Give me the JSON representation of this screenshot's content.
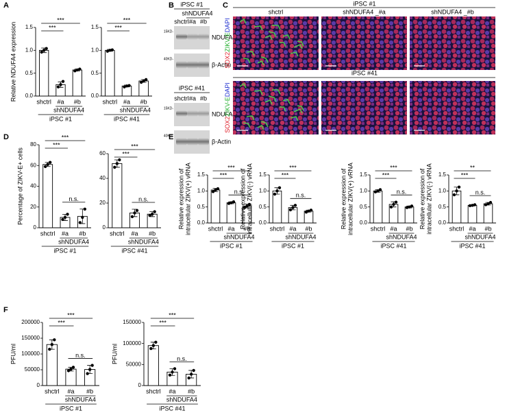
{
  "panels": [
    "A",
    "B",
    "C",
    "D",
    "E",
    "F"
  ],
  "blot": {
    "blocks": [
      {
        "cell_line": "iPSC #1",
        "group_label": "shNDUFA4",
        "lanes": [
          "shctrl",
          "#a",
          "#b"
        ],
        "bands": [
          {
            "marker": "15KD-",
            "name": "NDUFA4"
          },
          {
            "marker": "40KD-",
            "name": "β-Actin"
          }
        ]
      },
      {
        "cell_line": "iPSC #41",
        "lanes": [
          "shctrl",
          "#a",
          "#b"
        ],
        "bands": [
          {
            "marker": "15KD-",
            "name": "NDUFA4"
          },
          {
            "marker": "40KD-",
            "name": "β-Actin"
          }
        ]
      }
    ]
  },
  "images": {
    "stain": [
      "SOX2",
      "ZIKV-E",
      "DAPI"
    ],
    "rows": [
      {
        "cell_line": "iPSC #1",
        "columns": [
          "shctrl",
          "shNDUFA4 _#a",
          "shNDUFA4 _#b"
        ]
      },
      {
        "cell_line": "iPSC #41"
      }
    ]
  },
  "chart_data": [
    {
      "type": "bar",
      "ylabel": [
        "Relative NDUFA4 expression"
      ],
      "categories": [
        "shctrl",
        "#a",
        "#b"
      ],
      "group_label": "shNDUFA4",
      "cell_line": "iPSC #1",
      "values": [
        1.0,
        0.25,
        0.57
      ],
      "errors": [
        0.05,
        0.06,
        0.02
      ],
      "points": [
        [
          0.96,
          1.0,
          1.04
        ],
        [
          0.2,
          0.25,
          0.32
        ],
        [
          0.55,
          0.57,
          0.59
        ]
      ],
      "ylim": [
        0,
        1.5
      ],
      "yticks": [
        {
          "value": 0,
          "label": "0.0"
        },
        {
          "value": 0.5,
          "label": "0.5"
        },
        {
          "value": 1,
          "label": "1.0"
        },
        {
          "value": 1.5,
          "label": "1.5"
        }
      ],
      "brackets": [
        {
          "label": "***",
          "from": 0,
          "to": 2
        },
        {
          "label": "***",
          "from": 0,
          "to": 1
        }
      ],
      "color": "#ffffff",
      "edge_color": "#000000"
    },
    {
      "type": "bar",
      "categories": [
        "shctrl",
        "#a",
        "#b"
      ],
      "group_label": "shNDUFA4",
      "cell_line": "iPSC #41",
      "values": [
        1.0,
        0.22,
        0.33
      ],
      "errors": [
        0.02,
        0.02,
        0.03
      ],
      "points": [
        [
          0.98,
          1.0,
          1.01
        ],
        [
          0.2,
          0.22,
          0.23
        ],
        [
          0.3,
          0.33,
          0.36
        ]
      ],
      "ylim": [
        0,
        1.5
      ],
      "yticks": [
        {
          "value": 0,
          "label": "0.0"
        },
        {
          "value": 0.5,
          "label": "0.5"
        },
        {
          "value": 1,
          "label": "1.0"
        },
        {
          "value": 1.5,
          "label": "1.5"
        }
      ],
      "brackets": [
        {
          "label": "***",
          "from": 0,
          "to": 2
        },
        {
          "label": "***",
          "from": 0,
          "to": 1
        }
      ],
      "color": "#ffffff",
      "edge_color": "#000000"
    },
    {
      "type": "bar",
      "ylabel": [
        "Percentage of ZIKV-E+ cells"
      ],
      "categories": [
        "shctrl",
        "#a",
        "#b"
      ],
      "group_label": "shNDUFA4",
      "cell_line": "iPSC #1",
      "values": [
        61,
        10,
        11
      ],
      "errors": [
        2,
        3,
        7
      ],
      "points": [
        [
          59,
          61,
          63
        ],
        [
          8,
          10,
          13
        ],
        [
          5,
          10,
          18
        ]
      ],
      "ylim": [
        0,
        80
      ],
      "yticks": [
        0,
        20,
        40,
        60,
        80
      ],
      "brackets": [
        {
          "label": "***",
          "from": 0,
          "to": 2
        },
        {
          "label": "***",
          "from": 0,
          "to": 1
        },
        {
          "label": "n.s.",
          "from": 1,
          "to": 2
        }
      ],
      "color": "#ffffff",
      "edge_color": "#000000"
    },
    {
      "type": "bar",
      "categories": [
        "shctrl",
        "#a",
        "#b"
      ],
      "group_label": "shNDUFA4",
      "cell_line": "iPSC #41",
      "values": [
        52,
        12,
        11
      ],
      "errors": [
        3,
        3,
        2
      ],
      "points": [
        [
          49,
          52,
          55
        ],
        [
          9,
          12,
          14
        ],
        [
          10,
          11,
          13
        ]
      ],
      "ylim": [
        0,
        60
      ],
      "yticks": [
        0,
        20,
        40,
        60
      ],
      "brackets": [
        {
          "label": "***",
          "from": 0,
          "to": 2
        },
        {
          "label": "***",
          "from": 0,
          "to": 1
        },
        {
          "label": "n.s.",
          "from": 1,
          "to": 2
        }
      ],
      "color": "#ffffff",
      "edge_color": "#000000"
    },
    {
      "type": "bar",
      "ylabel": [
        "Relative expression of",
        "intracellular ZIKV(+) vRNA"
      ],
      "categories": [
        "shctrl",
        "#a",
        "#b"
      ],
      "group_label": "shNDUFA4",
      "cell_line": "iPSC #1",
      "values": [
        1.03,
        0.63,
        0.53
      ],
      "errors": [
        0.05,
        0.03,
        0.06
      ],
      "points": [
        [
          0.98,
          1.03,
          1.07
        ],
        [
          0.61,
          0.63,
          0.66
        ],
        [
          0.48,
          0.53,
          0.58
        ]
      ],
      "ylim": [
        0,
        1.5
      ],
      "yticks": [
        {
          "value": 0,
          "label": "0.0"
        },
        {
          "value": 0.5,
          "label": "0.5"
        },
        {
          "value": 1,
          "label": "1.0"
        },
        {
          "value": 1.5,
          "label": "1.5"
        }
      ],
      "brackets": [
        {
          "label": "***",
          "from": 0,
          "to": 2
        },
        {
          "label": "***",
          "from": 0,
          "to": 1
        },
        {
          "label": "n.s.",
          "from": 1,
          "to": 2
        }
      ],
      "color": "#ffffff",
      "edge_color": "#000000"
    },
    {
      "type": "bar",
      "ylabel": [
        "Relative expression of",
        "intracellular ZIKV(-) vRNA"
      ],
      "categories": [
        "shctrl",
        "#a",
        "#b"
      ],
      "group_label": "shNDUFA4",
      "cell_line": "iPSC #1",
      "values": [
        1.0,
        0.48,
        0.37
      ],
      "errors": [
        0.1,
        0.07,
        0.03
      ],
      "points": [
        [
          0.9,
          1.0,
          1.1
        ],
        [
          0.41,
          0.48,
          0.55
        ],
        [
          0.34,
          0.37,
          0.4
        ]
      ],
      "ylim": [
        0,
        1.5
      ],
      "yticks": [
        {
          "value": 0,
          "label": "0.0"
        },
        {
          "value": 0.5,
          "label": "0.5"
        },
        {
          "value": 1,
          "label": "1.0"
        },
        {
          "value": 1.5,
          "label": "1.5"
        }
      ],
      "brackets": [
        {
          "label": "***",
          "from": 0,
          "to": 2
        },
        {
          "label": "***",
          "from": 0,
          "to": 1
        },
        {
          "label": "n.s.",
          "from": 1,
          "to": 2
        }
      ],
      "color": "#ffffff",
      "edge_color": "#000000"
    },
    {
      "type": "bar",
      "ylabel": [
        "Relative expression of",
        "intracellular ZIKV(+) vRNA"
      ],
      "categories": [
        "shctrl",
        "#a",
        "#b"
      ],
      "group_label": "shNDUFA4",
      "cell_line": "iPSC #41",
      "values": [
        1.0,
        0.58,
        0.5
      ],
      "errors": [
        0.04,
        0.08,
        0.03
      ],
      "points": [
        [
          0.97,
          1.0,
          1.04
        ],
        [
          0.5,
          0.58,
          0.65
        ],
        [
          0.48,
          0.5,
          0.53
        ]
      ],
      "ylim": [
        0,
        1.5
      ],
      "yticks": [
        {
          "value": 0,
          "label": "0.0"
        },
        {
          "value": 0.5,
          "label": "0.5"
        },
        {
          "value": 1,
          "label": "1.0"
        },
        {
          "value": 1.5,
          "label": "1.5"
        }
      ],
      "brackets": [
        {
          "label": "***",
          "from": 0,
          "to": 2
        },
        {
          "label": "***",
          "from": 0,
          "to": 1
        },
        {
          "label": "n.s.",
          "from": 1,
          "to": 2
        }
      ],
      "color": "#ffffff",
      "edge_color": "#000000"
    },
    {
      "type": "bar",
      "ylabel": [
        "Relative expression of",
        "intracellular ZIKV(-) vRNA"
      ],
      "categories": [
        "shctrl",
        "#a",
        "#b"
      ],
      "group_label": "shNDUFA4",
      "cell_line": "iPSC #41",
      "values": [
        1.0,
        0.55,
        0.6
      ],
      "errors": [
        0.12,
        0.02,
        0.04
      ],
      "points": [
        [
          0.88,
          1.0,
          1.12
        ],
        [
          0.54,
          0.55,
          0.57
        ],
        [
          0.57,
          0.6,
          0.64
        ]
      ],
      "ylim": [
        0,
        1.5
      ],
      "yticks": [
        {
          "value": 0,
          "label": "0.0"
        },
        {
          "value": 0.5,
          "label": "0.5"
        },
        {
          "value": 1,
          "label": "1.0"
        },
        {
          "value": 1.5,
          "label": "1.5"
        }
      ],
      "brackets": [
        {
          "label": "**",
          "from": 0,
          "to": 2
        },
        {
          "label": "***",
          "from": 0,
          "to": 1
        },
        {
          "label": "n.s.",
          "from": 1,
          "to": 2
        }
      ],
      "color": "#ffffff",
      "edge_color": "#000000"
    },
    {
      "type": "bar",
      "ylabel": [
        "PFU/ml"
      ],
      "categories": [
        "shctrl",
        "#a",
        "#b"
      ],
      "group_label": "shNDUFA4",
      "cell_line": "iPSC #1",
      "values": [
        130000,
        52000,
        51000
      ],
      "errors": [
        15000,
        6000,
        13000
      ],
      "points": [
        [
          115000,
          130000,
          145000
        ],
        [
          47000,
          52000,
          58000
        ],
        [
          38000,
          51000,
          64000
        ]
      ],
      "ylim": [
        0,
        200000
      ],
      "yticks": [
        0,
        50000,
        100000,
        150000,
        200000
      ],
      "brackets": [
        {
          "label": "***",
          "from": 0,
          "to": 2
        },
        {
          "label": "***",
          "from": 0,
          "to": 1
        },
        {
          "label": "n.s.",
          "from": 1,
          "to": 2
        }
      ],
      "color": "#ffffff",
      "edge_color": "#000000"
    },
    {
      "type": "bar",
      "ylabel": [
        "PFU/ml"
      ],
      "categories": [
        "shctrl",
        "#a",
        "#b"
      ],
      "group_label": "shNDUFA4",
      "cell_line": "iPSC #41",
      "values": [
        95000,
        32000,
        27000
      ],
      "errors": [
        8000,
        8000,
        9000
      ],
      "points": [
        [
          88000,
          95000,
          103000
        ],
        [
          25000,
          32000,
          40000
        ],
        [
          18000,
          27000,
          36000
        ]
      ],
      "ylim": [
        0,
        150000
      ],
      "yticks": [
        0,
        50000,
        100000,
        150000
      ],
      "brackets": [
        {
          "label": "***",
          "from": 0,
          "to": 2
        },
        {
          "label": "***",
          "from": 0,
          "to": 1
        },
        {
          "label": "n.s.",
          "from": 1,
          "to": 2
        }
      ],
      "color": "#ffffff",
      "edge_color": "#000000"
    }
  ]
}
